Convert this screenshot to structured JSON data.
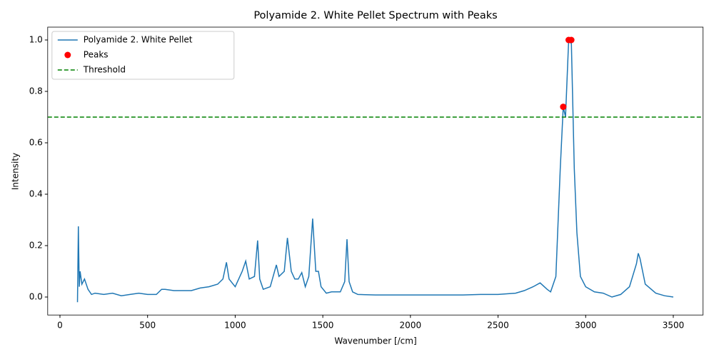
{
  "chart_data": {
    "type": "line",
    "title": "Polyamide 2. White Pellet Spectrum with Peaks",
    "xlabel": "Wavenumber [/cm]",
    "ylabel": "Intensity",
    "xlim": [
      -70,
      3670
    ],
    "ylim": [
      -0.07,
      1.05
    ],
    "xticks": [
      0,
      500,
      1000,
      1500,
      2000,
      2500,
      3000,
      3500
    ],
    "yticks": [
      {
        "value": 0,
        "label": "0.0"
      },
      0.2,
      0.4,
      0.6,
      0.8,
      {
        "value": 1,
        "label": "1.0"
      }
    ],
    "legend": "upper left",
    "series": [
      {
        "name": "Polyamide 2. White Pellet",
        "color": "#1f77b4",
        "x": [
          100,
          105,
          110,
          115,
          125,
          140,
          160,
          180,
          200,
          250,
          300,
          350,
          400,
          450,
          500,
          550,
          580,
          600,
          650,
          700,
          750,
          800,
          850,
          900,
          930,
          950,
          965,
          1000,
          1040,
          1060,
          1080,
          1110,
          1128,
          1140,
          1160,
          1200,
          1235,
          1250,
          1280,
          1298,
          1320,
          1340,
          1360,
          1380,
          1400,
          1420,
          1442,
          1460,
          1475,
          1490,
          1520,
          1550,
          1600,
          1625,
          1638,
          1650,
          1670,
          1700,
          1800,
          1900,
          2000,
          2100,
          2200,
          2300,
          2400,
          2500,
          2600,
          2650,
          2700,
          2740,
          2780,
          2800,
          2830,
          2855,
          2872,
          2885,
          2903,
          2912,
          2918,
          2935,
          2950,
          2970,
          3000,
          3050,
          3100,
          3150,
          3200,
          3250,
          3290,
          3300,
          3310,
          3340,
          3400,
          3450,
          3500
        ],
        "values": [
          -0.02,
          0.275,
          0.04,
          0.1,
          0.05,
          0.07,
          0.03,
          0.01,
          0.015,
          0.01,
          0.015,
          0.005,
          0.01,
          0.015,
          0.01,
          0.01,
          0.03,
          0.03,
          0.025,
          0.025,
          0.025,
          0.035,
          0.04,
          0.05,
          0.07,
          0.135,
          0.07,
          0.04,
          0.1,
          0.14,
          0.07,
          0.08,
          0.22,
          0.07,
          0.03,
          0.04,
          0.125,
          0.08,
          0.1,
          0.23,
          0.1,
          0.07,
          0.07,
          0.095,
          0.04,
          0.08,
          0.305,
          0.1,
          0.1,
          0.04,
          0.015,
          0.02,
          0.02,
          0.06,
          0.225,
          0.06,
          0.02,
          0.01,
          0.008,
          0.008,
          0.008,
          0.008,
          0.008,
          0.008,
          0.01,
          0.01,
          0.015,
          0.025,
          0.04,
          0.055,
          0.03,
          0.02,
          0.08,
          0.5,
          0.74,
          0.7,
          1.0,
          0.99,
          1.0,
          0.5,
          0.25,
          0.08,
          0.04,
          0.02,
          0.015,
          0.0,
          0.01,
          0.04,
          0.13,
          0.17,
          0.15,
          0.05,
          0.015,
          0.005,
          0.0
        ]
      }
    ],
    "peaks": {
      "name": "Peaks",
      "color": "#ff0000",
      "x": [
        2872,
        2903,
        2918
      ],
      "values": [
        0.74,
        1.0,
        1.0
      ]
    },
    "threshold": {
      "name": "Threshold",
      "color": "#008000",
      "value": 0.7
    }
  }
}
